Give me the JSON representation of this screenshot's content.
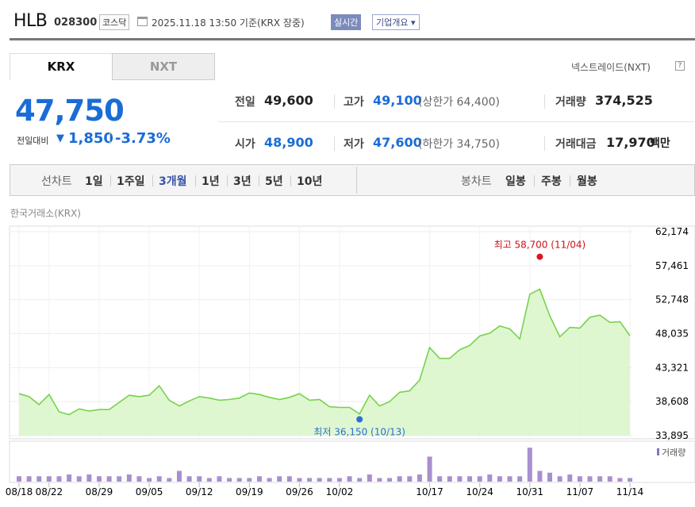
{
  "header": {
    "title": "HLB",
    "code": "028300",
    "market": "코스닥",
    "timestamp": "2025.11.18 13:50  기준(KRX 장중)",
    "realtime": "실시간",
    "company_info": "기업개요 ▾"
  },
  "tabs": [
    {
      "label": "KRX",
      "active": true
    },
    {
      "label": "NXT",
      "active": false
    }
  ],
  "nxt_link": "넥스트레이드(NXT)",
  "help_icon": "?",
  "price": {
    "current": "47,750",
    "prev_label": "전일대비",
    "direction_icon": "▼",
    "change": "1,850",
    "change_pct": "-3.73%"
  },
  "stats": {
    "prev_close": {
      "label": "전일",
      "value": "49,600"
    },
    "high": {
      "label": "고가",
      "value": "49,100",
      "sub": "(상한가 64,400)"
    },
    "volume": {
      "label": "거래량",
      "value": "374,525"
    },
    "open": {
      "label": "시가",
      "value": "48,900"
    },
    "low": {
      "label": "저가",
      "value": "47,600",
      "sub": "(하한가 34,750)"
    },
    "amount": {
      "label": "거래대금",
      "value": "17,970",
      "unit": "백만"
    }
  },
  "periods": {
    "line_label": "선차트",
    "line_items": [
      "1일",
      "1주일",
      "3개월",
      "1년",
      "3년",
      "5년",
      "10년"
    ],
    "active": "3개월",
    "candle_label": "봉차트",
    "candle_items": [
      "일봉",
      "주봉",
      "월봉"
    ]
  },
  "source_label": "한국거래소(KRX)",
  "colors": {
    "accent": "#1a6cd6",
    "line": "#7ed957",
    "fill": "#d6f5c4",
    "volume": "#a98fcf",
    "high": "#e0141e",
    "low": "#2b6fd6"
  },
  "chart_data": [
    {
      "type": "area",
      "y_ticks": [
        "62,174",
        "57,461",
        "52,748",
        "48,035",
        "43,321",
        "38,608",
        "33,895"
      ],
      "ylim": [
        33895,
        62174
      ],
      "x_ticks": [
        "08/18",
        "08/22",
        "08/29",
        "09/05",
        "09/12",
        "09/19",
        "09/26",
        "10/02",
        "10/17",
        "10/24",
        "10/31",
        "11/07",
        "11/14"
      ],
      "annotations": [
        {
          "label": "최고 58,700 (11/04)",
          "value": 58700
        },
        {
          "label": "최저 36,150 (10/13)",
          "value": 36150
        }
      ],
      "series": [
        {
          "values": [
            39700,
            39300,
            38200,
            39600,
            37200,
            36800,
            37600,
            37300,
            37500,
            37500,
            38500,
            39500,
            39300,
            39500,
            40800,
            38800,
            38000,
            38700,
            39300,
            39100,
            38800,
            38900,
            39100,
            39800,
            39600,
            39200,
            38900,
            39200,
            39700,
            38800,
            38900,
            37900,
            37800,
            37800,
            36900,
            39500,
            38000,
            38600,
            39900,
            40100,
            41600,
            46100,
            44600,
            44600,
            45800,
            46400,
            47700,
            48100,
            49100,
            48700,
            47300,
            53500,
            54200,
            50500,
            47600,
            48900,
            48800,
            50300,
            50600,
            49600,
            49700,
            47750
          ]
        }
      ]
    },
    {
      "type": "bar",
      "legend": "거래량",
      "values": [
        3,
        3,
        3,
        3,
        3,
        4,
        3,
        4,
        3,
        3,
        3,
        4,
        3,
        2,
        3,
        2,
        6,
        3,
        3,
        2,
        3,
        2,
        2,
        2,
        3,
        2,
        3,
        3,
        2,
        2,
        2,
        2,
        2,
        3,
        2,
        4,
        2,
        2,
        3,
        3,
        4,
        14,
        3,
        3,
        3,
        3,
        3,
        4,
        3,
        3,
        3,
        19,
        6,
        5,
        3,
        4,
        3,
        3,
        3,
        3,
        2,
        2
      ]
    }
  ]
}
